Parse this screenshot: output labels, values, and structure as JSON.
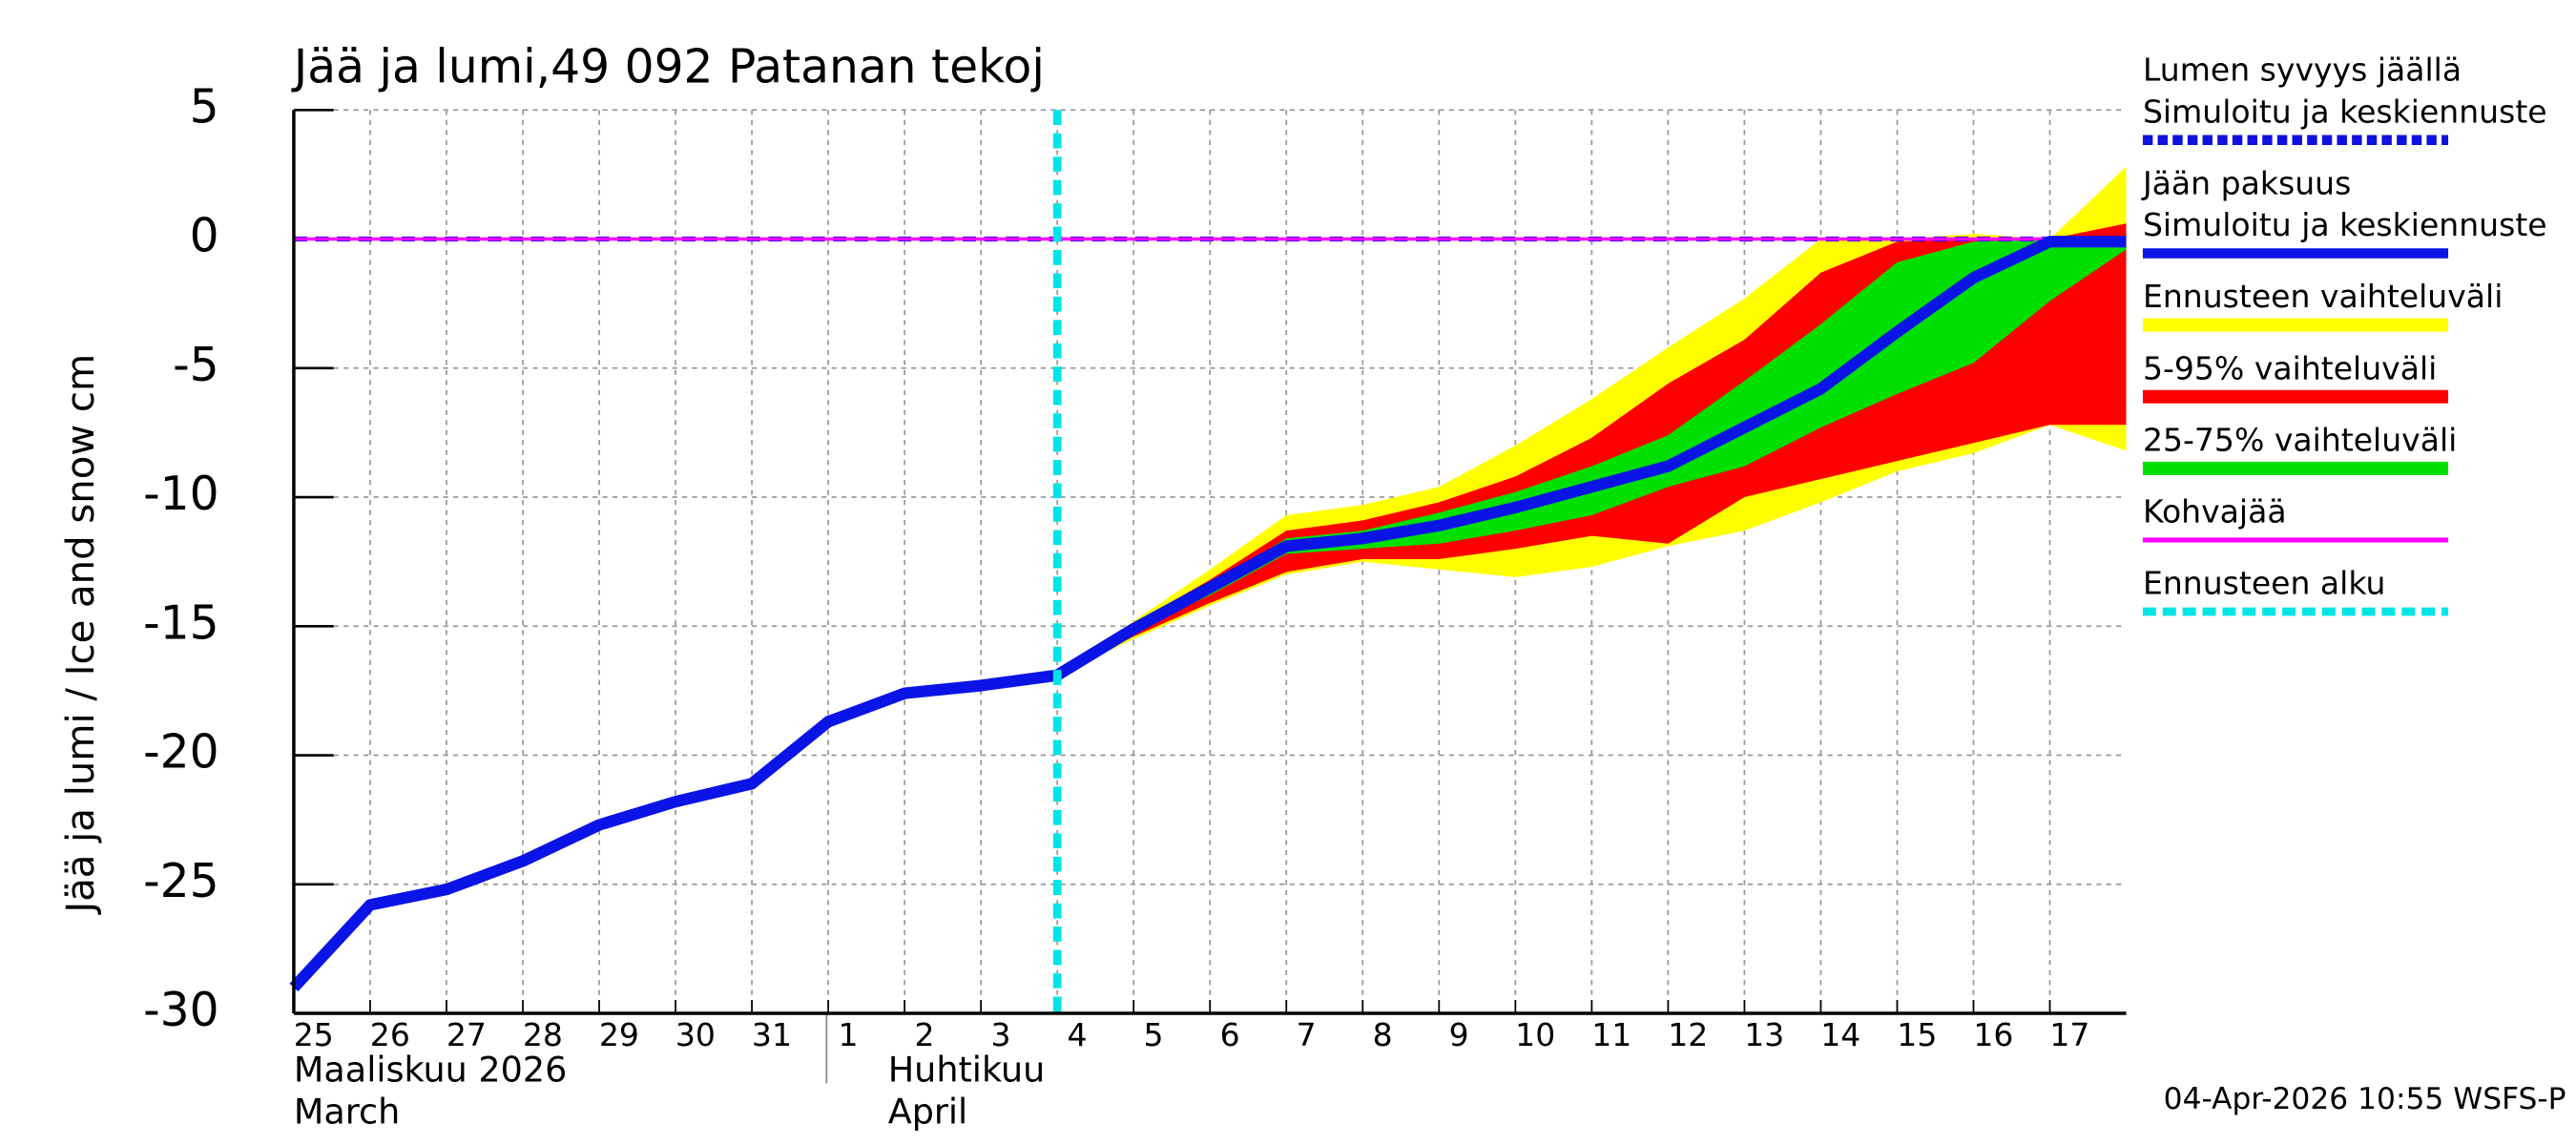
{
  "chart_data": {
    "type": "line",
    "title": "Jää ja lumi,49 092 Patanan tekoj",
    "ylabel": "Jää ja lumi / Ice and snow    cm",
    "footer": "04-Apr-2026 10:55 WSFS-P",
    "categories": [
      "25",
      "26",
      "27",
      "28",
      "29",
      "30",
      "31",
      "1",
      "2",
      "3",
      "4",
      "5",
      "6",
      "7",
      "8",
      "9",
      "10",
      "11",
      "12",
      "13",
      "14",
      "15",
      "16",
      "17",
      null
    ],
    "month_labels": [
      {
        "lines": [
          "Maaliskuu 2026",
          "March"
        ],
        "at": "25"
      },
      {
        "lines": [
          "Huhtikuu",
          "April"
        ],
        "at": "2"
      }
    ],
    "ylim": [
      -30,
      5
    ],
    "yticks": [
      5,
      0,
      -5,
      -10,
      -15,
      -20,
      -25,
      -30
    ],
    "grid": true,
    "forecast_start": {
      "name": "Ennusteen alku",
      "color": "#00e5e5",
      "at": "4"
    },
    "series": [
      {
        "kind": "line",
        "name": "Lumen syvyys jäällä",
        "note": "Simuloitu ja keskiennuste",
        "color": "#1010e0",
        "dashed": true,
        "values": [
          0,
          0,
          0,
          0,
          0,
          0,
          0,
          0,
          0,
          0,
          0,
          0,
          0,
          0,
          0,
          0,
          0,
          0,
          0,
          0,
          0,
          0,
          0,
          0,
          0
        ]
      },
      {
        "kind": "line",
        "name": "Jään paksuus",
        "note": "Simuloitu ja keskiennuste",
        "color": "#0a14e6",
        "width": 7,
        "values": [
          -29,
          -25.8,
          -25.2,
          -24.1,
          -22.7,
          -21.8,
          -21.1,
          -18.7,
          -17.6,
          -17.3,
          -16.9,
          -15.1,
          -13.5,
          -11.9,
          -11.6,
          -11.1,
          -10.4,
          -9.6,
          -8.8,
          -7.3,
          -5.8,
          -3.6,
          -1.5,
          -0.1,
          -0.1
        ]
      },
      {
        "kind": "band",
        "name": "Ennusteen vaihteluväli",
        "color": "#ffff00",
        "upper": [
          null,
          null,
          null,
          null,
          null,
          null,
          null,
          null,
          null,
          null,
          -16.9,
          -14.8,
          -12.8,
          -10.7,
          -10.3,
          -9.6,
          -8,
          -6.2,
          -4.2,
          -2.3,
          0,
          0,
          0.2,
          0,
          2.8
        ],
        "lower": [
          null,
          null,
          null,
          null,
          null,
          null,
          null,
          null,
          null,
          null,
          -16.9,
          -15.5,
          -14.2,
          -13,
          -12.5,
          -12.8,
          -13.1,
          -12.7,
          -11.9,
          -11.3,
          -10.2,
          -9,
          -8.3,
          -7.2,
          -8.2
        ]
      },
      {
        "kind": "band",
        "name": "5-95% vaihteluväli",
        "color": "#ff0000",
        "upper": [
          null,
          null,
          null,
          null,
          null,
          null,
          null,
          null,
          null,
          null,
          -16.9,
          -14.9,
          -13.2,
          -11.3,
          -10.9,
          -10.2,
          -9.2,
          -7.7,
          -5.6,
          -3.9,
          -1.3,
          -0.1,
          0,
          0,
          0.6
        ],
        "lower": [
          null,
          null,
          null,
          null,
          null,
          null,
          null,
          null,
          null,
          null,
          -16.9,
          -15.4,
          -14.1,
          -12.9,
          -12.4,
          -12.4,
          -12,
          -11.5,
          -11.8,
          -10,
          -9.3,
          -8.6,
          -7.9,
          -7.2,
          -7.2
        ]
      },
      {
        "kind": "band",
        "name": "25-75% vaihteluväli",
        "color": "#00e000",
        "upper": [
          null,
          null,
          null,
          null,
          null,
          null,
          null,
          null,
          null,
          null,
          -16.9,
          -15,
          -13.4,
          -11.6,
          -11.3,
          -10.6,
          -9.8,
          -8.8,
          -7.6,
          -5.5,
          -3.3,
          -0.9,
          -0.1,
          0,
          0
        ],
        "lower": [
          null,
          null,
          null,
          null,
          null,
          null,
          null,
          null,
          null,
          null,
          -16.9,
          -15.2,
          -13.8,
          -12.2,
          -12,
          -11.8,
          -11.3,
          -10.7,
          -9.6,
          -8.8,
          -7.3,
          -6,
          -4.8,
          -2.4,
          -0.4
        ]
      },
      {
        "kind": "line",
        "name": "Kohvajää",
        "color": "#ff00ff",
        "width": 2,
        "values": [
          0,
          0,
          0,
          0,
          0,
          0,
          0,
          0,
          0,
          0,
          0,
          0,
          0,
          0,
          0,
          0,
          0,
          0,
          0,
          0,
          0,
          0,
          0,
          0,
          0
        ]
      }
    ]
  }
}
